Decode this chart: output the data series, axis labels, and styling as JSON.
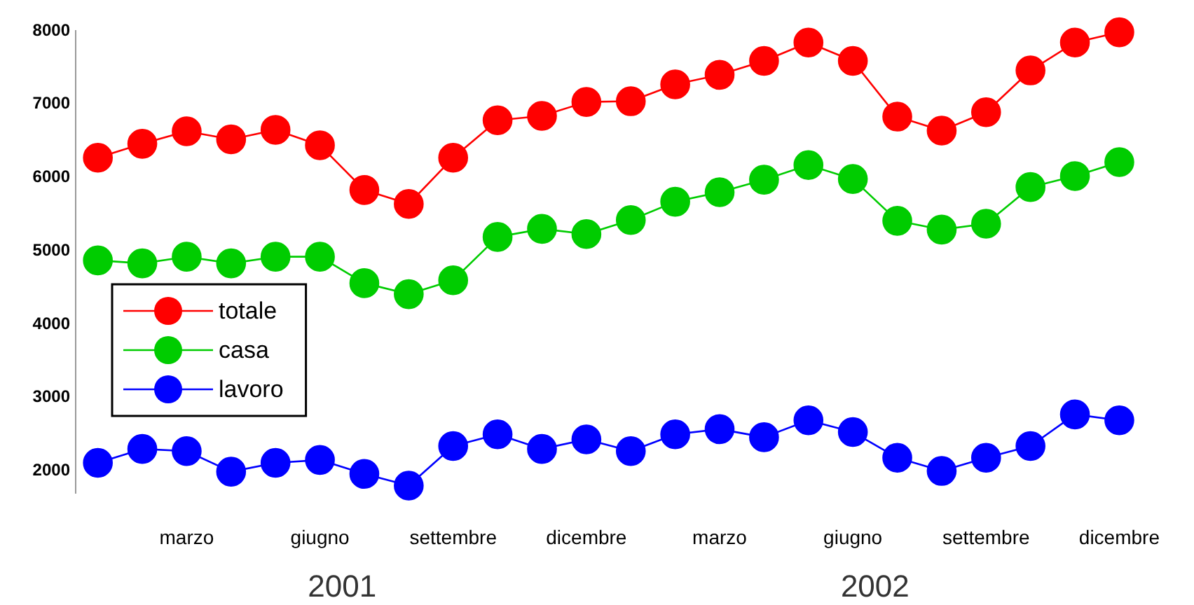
{
  "chart_data": {
    "type": "line",
    "categories": [
      null,
      null,
      "marzo",
      null,
      null,
      "giugno",
      null,
      null,
      "settembre",
      null,
      null,
      "dicembre",
      null,
      null,
      "marzo",
      null,
      null,
      "giugno",
      null,
      null,
      "settembre",
      null,
      null,
      "dicembre"
    ],
    "series": [
      {
        "name": "totale",
        "color": "#ff0000",
        "values": [
          6270,
          6460,
          6630,
          6520,
          6650,
          6440,
          5830,
          5640,
          6270,
          6780,
          6840,
          7030,
          7040,
          7270,
          7400,
          7590,
          7840,
          7590,
          6830,
          6640,
          6890,
          7460,
          7840,
          7980
        ]
      },
      {
        "name": "casa",
        "color": "#00cc00",
        "values": [
          4870,
          4830,
          4920,
          4830,
          4920,
          4920,
          4560,
          4410,
          4600,
          5190,
          5300,
          5230,
          5420,
          5670,
          5800,
          5970,
          6170,
          5980,
          5410,
          5290,
          5370,
          5870,
          6020,
          6210
        ]
      },
      {
        "name": "lavoro",
        "color": "#0000ff",
        "values": [
          2110,
          2300,
          2270,
          1990,
          2110,
          2150,
          1960,
          1800,
          2340,
          2500,
          2300,
          2430,
          2270,
          2500,
          2570,
          2460,
          2690,
          2530,
          2180,
          2000,
          2180,
          2340,
          2770,
          2690
        ]
      }
    ],
    "ylim": [
      1700,
      8000
    ],
    "yticks": [
      2000,
      3000,
      4000,
      5000,
      6000,
      7000,
      8000
    ],
    "annotations": [
      "2001",
      "2002"
    ],
    "grid": false,
    "legend": "left",
    "marker": "circle",
    "line_style": "solid"
  }
}
